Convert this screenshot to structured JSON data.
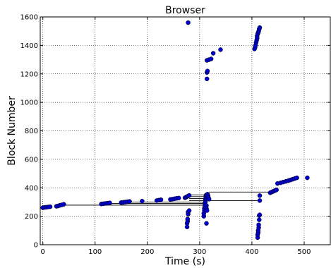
{
  "chart_data": {
    "type": "scatter",
    "title": "Browser",
    "xlabel": "Time (s)",
    "ylabel": "Block Number",
    "xlim": [
      -5,
      550
    ],
    "ylim": [
      0,
      1600
    ],
    "xticks": [
      0,
      100,
      200,
      300,
      400,
      500
    ],
    "yticks": [
      0,
      200,
      400,
      600,
      800,
      1000,
      1200,
      1400,
      1600
    ],
    "grid": true,
    "marker_color": "#0000cc",
    "series": [
      {
        "points": [
          [
            0,
            260
          ],
          [
            3,
            262
          ],
          [
            6,
            263
          ],
          [
            10,
            265
          ],
          [
            14,
            267
          ],
          [
            26,
            270
          ],
          [
            29,
            272
          ],
          [
            32,
            276
          ],
          [
            36,
            280
          ],
          [
            40,
            284
          ],
          [
            112,
            286
          ],
          [
            116,
            288
          ],
          [
            120,
            290
          ],
          [
            124,
            292
          ],
          [
            128,
            294
          ],
          [
            150,
            296
          ],
          [
            154,
            298
          ],
          [
            158,
            300
          ],
          [
            162,
            302
          ],
          [
            166,
            304
          ],
          [
            190,
            306
          ],
          [
            218,
            310
          ],
          [
            222,
            313
          ],
          [
            226,
            316
          ],
          [
            244,
            318
          ],
          [
            248,
            320
          ],
          [
            252,
            323
          ],
          [
            256,
            326
          ],
          [
            260,
            328
          ],
          [
            272,
            330
          ],
          [
            274,
            334
          ],
          [
            276,
            338
          ],
          [
            278,
            342
          ],
          [
            280,
            346
          ],
          [
            276,
            125
          ],
          [
            276,
            150
          ],
          [
            277,
            165
          ],
          [
            277,
            180
          ],
          [
            278,
            215
          ],
          [
            278,
            230
          ],
          [
            280,
            240
          ],
          [
            278,
            1560
          ],
          [
            308,
            200
          ],
          [
            308,
            220
          ],
          [
            309,
            240
          ],
          [
            309,
            255
          ],
          [
            310,
            270
          ],
          [
            310,
            290
          ],
          [
            311,
            300
          ],
          [
            311,
            320
          ],
          [
            312,
            330
          ],
          [
            312,
            345
          ],
          [
            313,
            350
          ],
          [
            314,
            340
          ],
          [
            315,
            355
          ],
          [
            316,
            345
          ],
          [
            317,
            330
          ],
          [
            318,
            320
          ],
          [
            313,
            275
          ],
          [
            313,
            255
          ],
          [
            314,
            240
          ],
          [
            313,
            150
          ],
          [
            314,
            1165
          ],
          [
            314,
            1210
          ],
          [
            315,
            1220
          ],
          [
            314,
            1295
          ],
          [
            318,
            1300
          ],
          [
            322,
            1305
          ],
          [
            326,
            1345
          ],
          [
            340,
            1370
          ],
          [
            405,
            1375
          ],
          [
            406,
            1385
          ],
          [
            407,
            1400
          ],
          [
            408,
            1420
          ],
          [
            409,
            1435
          ],
          [
            410,
            1450
          ],
          [
            410,
            1465
          ],
          [
            411,
            1480
          ],
          [
            412,
            1490
          ],
          [
            413,
            1500
          ],
          [
            414,
            1515
          ],
          [
            415,
            1525
          ],
          [
            411,
            50
          ],
          [
            411,
            70
          ],
          [
            412,
            85
          ],
          [
            412,
            100
          ],
          [
            413,
            120
          ],
          [
            413,
            140
          ],
          [
            414,
            175
          ],
          [
            414,
            205
          ],
          [
            415,
            210
          ],
          [
            415,
            310
          ],
          [
            415,
            345
          ],
          [
            435,
            365
          ],
          [
            438,
            370
          ],
          [
            441,
            375
          ],
          [
            444,
            380
          ],
          [
            447,
            385
          ],
          [
            449,
            430
          ],
          [
            455,
            435
          ],
          [
            460,
            440
          ],
          [
            465,
            445
          ],
          [
            470,
            450
          ],
          [
            474,
            455
          ],
          [
            478,
            460
          ],
          [
            482,
            465
          ],
          [
            486,
            470
          ],
          [
            506,
            470
          ]
        ]
      }
    ],
    "connectors": [
      [
        [
          36,
          278
        ],
        [
          314,
          278
        ]
      ],
      [
        [
          125,
          290
        ],
        [
          314,
          290
        ]
      ],
      [
        [
          165,
          300
        ],
        [
          314,
          300
        ]
      ],
      [
        [
          280,
          310
        ],
        [
          415,
          310
        ]
      ],
      [
        [
          280,
          325
        ],
        [
          314,
          325
        ]
      ],
      [
        [
          280,
          338
        ],
        [
          314,
          338
        ]
      ],
      [
        [
          280,
          350
        ],
        [
          314,
          350
        ]
      ],
      [
        [
          318,
          370
        ],
        [
          438,
          370
        ]
      ]
    ]
  }
}
